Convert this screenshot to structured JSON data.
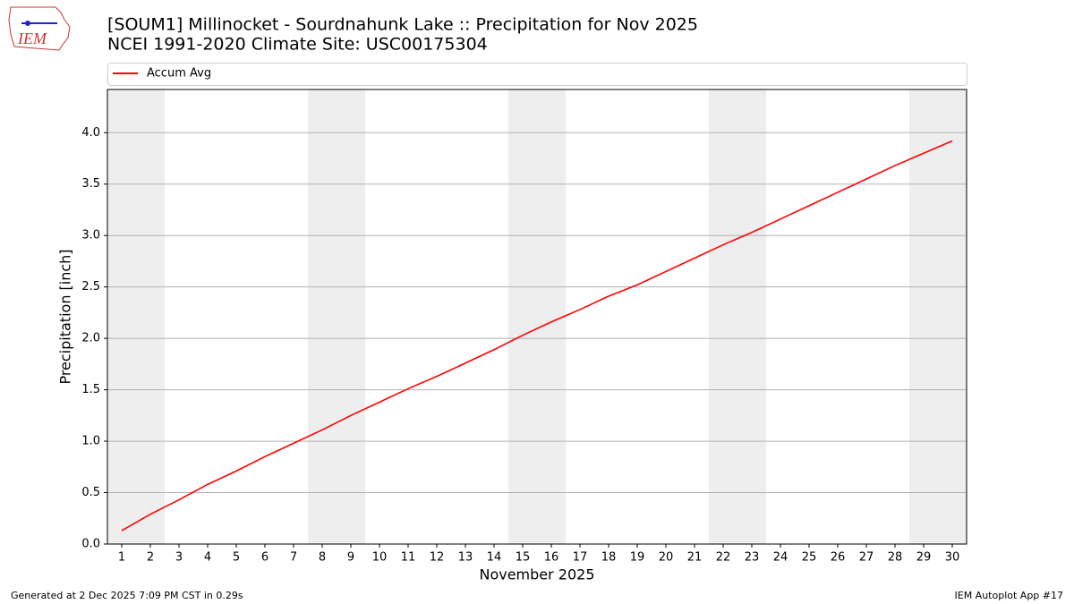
{
  "logo_text": "IEM",
  "footer": {
    "left": "Generated at 2 Dec 2025 7:09 PM CST in 0.29s",
    "right": "IEM Autoplot App #17"
  },
  "chart_data": {
    "type": "line",
    "title": "[SOUM1] Millinocket - Sourdnahunk Lake :: Precipitation for Nov 2025",
    "subtitle": "NCEI 1991-2020 Climate Site: USC00175304",
    "x_label": "November 2025",
    "y_label": "Precipitation [inch]",
    "x": [
      1,
      2,
      3,
      4,
      5,
      6,
      7,
      8,
      9,
      10,
      11,
      12,
      13,
      14,
      15,
      16,
      17,
      18,
      19,
      20,
      21,
      22,
      23,
      24,
      25,
      26,
      27,
      28,
      29,
      30
    ],
    "series": [
      {
        "name": "Accum Avg",
        "color": "#ff0000",
        "values": [
          0.13,
          0.29,
          0.43,
          0.58,
          0.71,
          0.85,
          0.98,
          1.11,
          1.25,
          1.38,
          1.51,
          1.63,
          1.76,
          1.89,
          2.03,
          2.16,
          2.28,
          2.41,
          2.52,
          2.65,
          2.78,
          2.91,
          3.03,
          3.16,
          3.29,
          3.42,
          3.55,
          3.68,
          3.8,
          3.92
        ]
      }
    ],
    "weekend_bands": [
      [
        0.5,
        2.5
      ],
      [
        7.5,
        9.5
      ],
      [
        14.5,
        16.5
      ],
      [
        21.5,
        23.5
      ],
      [
        28.5,
        30.5
      ]
    ],
    "band_color": "#eeeeee",
    "xlim": [
      0.5,
      30.5
    ],
    "xticks": [
      1,
      2,
      3,
      4,
      5,
      6,
      7,
      8,
      9,
      10,
      11,
      12,
      13,
      14,
      15,
      16,
      17,
      18,
      19,
      20,
      21,
      22,
      23,
      24,
      25,
      26,
      27,
      28,
      29,
      30
    ],
    "ylim": [
      0,
      4.42
    ],
    "yticks": [
      {
        "value": 0,
        "label": "0.0"
      },
      0.5,
      {
        "value": 1,
        "label": "1.0"
      },
      1.5,
      {
        "value": 2,
        "label": "2.0"
      },
      2.5,
      {
        "value": 3,
        "label": "3.0"
      },
      3.5,
      {
        "value": 4,
        "label": "4.0"
      }
    ],
    "grid": "y",
    "legend": "top"
  }
}
